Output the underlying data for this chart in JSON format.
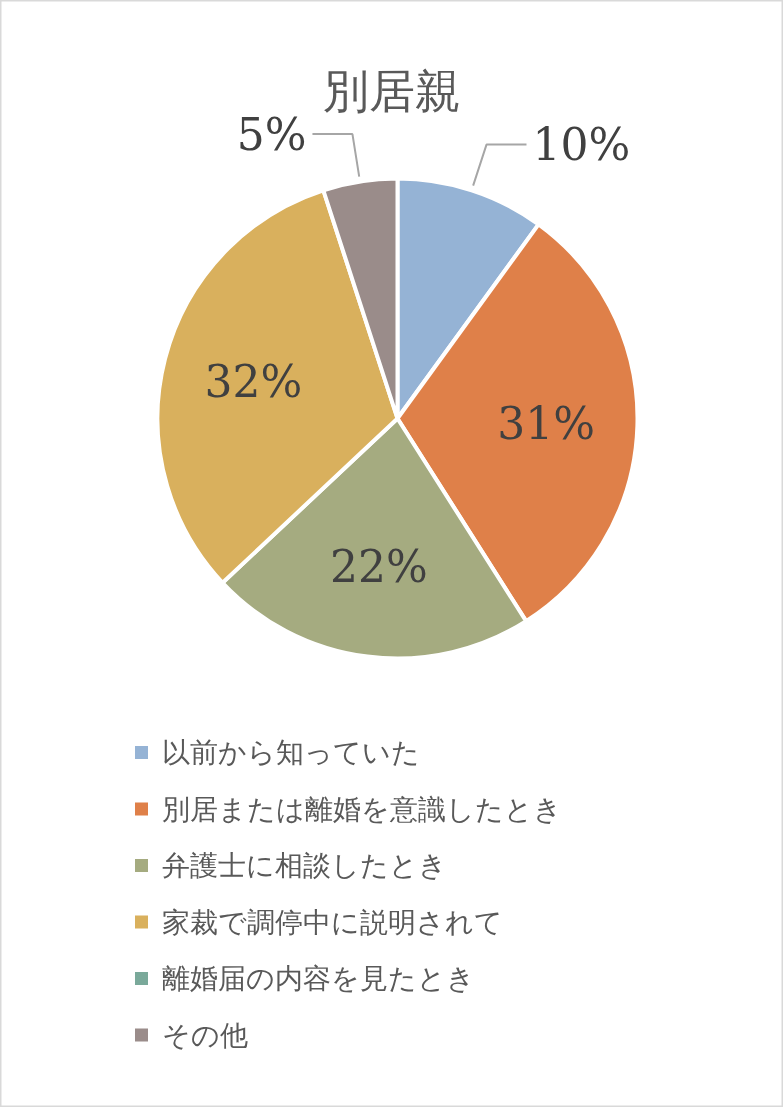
{
  "chart_data": {
    "type": "pie",
    "title": "別居親",
    "categories": [
      "以前から知っていた",
      "別居または離婚を意識したとき",
      "弁護士に相談したとき",
      "家裁で調停中に説明されて",
      "離婚届の内容を見たとき",
      "その他"
    ],
    "values": [
      10,
      31,
      22,
      32,
      0,
      5
    ],
    "colors": [
      "#95b3d5",
      "#df8049",
      "#a5ab80",
      "#d9b05d",
      "#7aa99a",
      "#9a8c8a"
    ],
    "value_labels": [
      "10%",
      "31%",
      "22%",
      "32%",
      null,
      "5%"
    ],
    "legend": "bottom"
  }
}
